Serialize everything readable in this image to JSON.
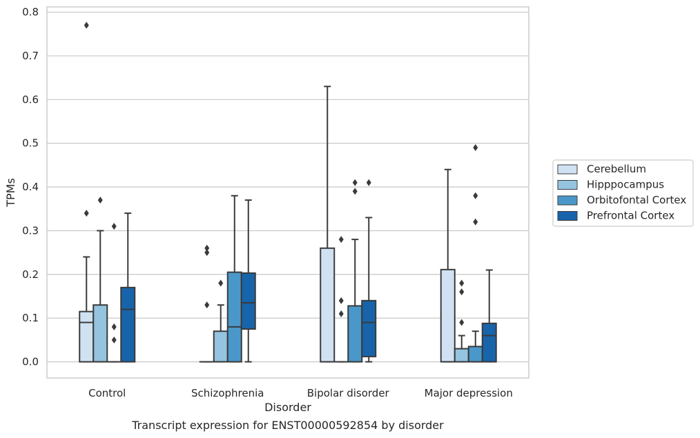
{
  "chart_data": {
    "type": "box",
    "caption": "Transcript expression for ENST00000592854 by disorder",
    "xlabel": "Disorder",
    "ylabel": "TPMs",
    "ylim": [
      -0.037,
      0.812
    ],
    "yticks": [
      0.0,
      0.1,
      0.2,
      0.3,
      0.4,
      0.5,
      0.6,
      0.7,
      0.8
    ],
    "ytick_labels": [
      "0.0",
      "0.1",
      "0.2",
      "0.3",
      "0.4",
      "0.5",
      "0.6",
      "0.7",
      "0.8"
    ],
    "grid": "horizontal",
    "legend_position": "right",
    "categories": [
      "Control",
      "Schizophrenia",
      "Bipolar disorder",
      "Major depression"
    ],
    "series": [
      {
        "name": "Cerebellum",
        "color": "#d0e1f2",
        "boxes": [
          {
            "q1": 0.0,
            "median": 0.09,
            "q3": 0.115,
            "whisker_low": 0.0,
            "whisker_high": 0.24,
            "outliers": [
              0.34,
              0.77
            ]
          },
          {
            "q1": 0.0,
            "median": 0.0,
            "q3": 0.0,
            "whisker_low": 0.0,
            "whisker_high": 0.0,
            "outliers": [
              0.13,
              0.25,
              0.26
            ]
          },
          {
            "q1": 0.0,
            "median": 0.0,
            "q3": 0.26,
            "whisker_low": 0.0,
            "whisker_high": 0.63,
            "outliers": []
          },
          {
            "q1": 0.0,
            "median": 0.0,
            "q3": 0.211,
            "whisker_low": 0.0,
            "whisker_high": 0.44,
            "outliers": []
          }
        ]
      },
      {
        "name": "Hipppocampus",
        "color": "#94c4df",
        "boxes": [
          {
            "q1": 0.0,
            "median": 0.0,
            "q3": 0.13,
            "whisker_low": 0.0,
            "whisker_high": 0.3,
            "outliers": [
              0.37
            ]
          },
          {
            "q1": 0.0,
            "median": 0.0,
            "q3": 0.07,
            "whisker_low": 0.0,
            "whisker_high": 0.13,
            "outliers": [
              0.18
            ]
          },
          {
            "q1": 0.0,
            "median": 0.0,
            "q3": 0.0,
            "whisker_low": 0.0,
            "whisker_high": 0.0,
            "outliers": [
              0.11,
              0.14,
              0.28
            ]
          },
          {
            "q1": 0.0,
            "median": 0.0,
            "q3": 0.03,
            "whisker_low": 0.0,
            "whisker_high": 0.06,
            "outliers": [
              0.09,
              0.16,
              0.18
            ]
          }
        ]
      },
      {
        "name": "Orbitofontal Cortex",
        "color": "#4a98c9",
        "boxes": [
          {
            "q1": 0.0,
            "median": 0.0,
            "q3": 0.0,
            "whisker_low": 0.0,
            "whisker_high": 0.0,
            "outliers": [
              0.05,
              0.08,
              0.31
            ]
          },
          {
            "q1": 0.0,
            "median": 0.08,
            "q3": 0.205,
            "whisker_low": 0.0,
            "whisker_high": 0.38,
            "outliers": []
          },
          {
            "q1": 0.0,
            "median": 0.0,
            "q3": 0.128,
            "whisker_low": 0.0,
            "whisker_high": 0.28,
            "outliers": [
              0.39,
              0.41
            ]
          },
          {
            "q1": 0.0,
            "median": 0.0,
            "q3": 0.035,
            "whisker_low": 0.0,
            "whisker_high": 0.07,
            "outliers": [
              0.32,
              0.38,
              0.49
            ]
          }
        ]
      },
      {
        "name": "Prefrontal Cortex",
        "color": "#1764ab",
        "boxes": [
          {
            "q1": 0.0,
            "median": 0.12,
            "q3": 0.17,
            "whisker_low": 0.0,
            "whisker_high": 0.34,
            "outliers": []
          },
          {
            "q1": 0.075,
            "median": 0.135,
            "q3": 0.203,
            "whisker_low": 0.0,
            "whisker_high": 0.37,
            "outliers": []
          },
          {
            "q1": 0.012,
            "median": 0.09,
            "q3": 0.14,
            "whisker_low": 0.0,
            "whisker_high": 0.33,
            "outliers": [
              0.41
            ]
          },
          {
            "q1": 0.0,
            "median": 0.06,
            "q3": 0.088,
            "whisker_low": 0.0,
            "whisker_high": 0.21,
            "outliers": []
          }
        ]
      }
    ]
  }
}
